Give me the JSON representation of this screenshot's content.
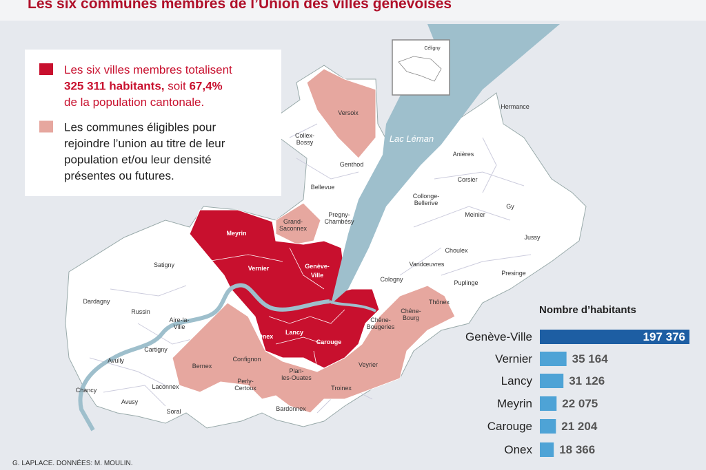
{
  "header": {
    "title": "Les six communes membres de l’Union des villes genevoises"
  },
  "legend": {
    "items": [
      {
        "color": "#c8102e",
        "lines": [
          [
            "Les six villes membres totalisent"
          ],
          [
            "325 311 habitants,",
            " soit ",
            "67,4%"
          ],
          [
            "de la population cantonale."
          ]
        ]
      },
      {
        "color": "#e6a79f",
        "lines": [
          [
            "Les communes éligibles pour"
          ],
          [
            "rejoindre l’union au titre de leur"
          ],
          [
            "population et/ou leur densité"
          ],
          [
            "présentes ou futures."
          ]
        ]
      }
    ]
  },
  "map": {
    "lake": "Lac Léman",
    "inset": "Céligny",
    "labels": [
      [
        "Versoix"
      ],
      [
        "Collex-",
        "Bossy"
      ],
      [
        "Genthod"
      ],
      [
        "Bellevue"
      ],
      [
        "Pregny-",
        "Chambésy"
      ],
      [
        "Grand-",
        "Saconnex"
      ],
      [
        "Meyrin"
      ],
      [
        "Vernier"
      ],
      [
        "Genève-",
        "Ville"
      ],
      [
        "Satigny"
      ],
      [
        "Dardagny"
      ],
      [
        "Russin"
      ],
      [
        "Aire-la-",
        "Ville"
      ],
      [
        "Cartigny"
      ],
      [
        "Avully"
      ],
      [
        "Chancy"
      ],
      [
        "Avusy"
      ],
      [
        "Laconnex"
      ],
      [
        "Soral"
      ],
      [
        "Bernex"
      ],
      [
        "Confignon"
      ],
      [
        "Perly-",
        "Certoux"
      ],
      [
        "Onex"
      ],
      [
        "Lancy"
      ],
      [
        "Carouge"
      ],
      [
        "Plan-",
        "les-Ouates"
      ],
      [
        "Bardonnex"
      ],
      [
        "Troinex"
      ],
      [
        "Veyrier"
      ],
      [
        "Chêne-",
        "Bougeries"
      ],
      [
        "Chêne-",
        "Bourg"
      ],
      [
        "Thônex"
      ],
      [
        "Cologny"
      ],
      [
        "Vandœuvres"
      ],
      [
        "Choulex"
      ],
      [
        "Puplinge"
      ],
      [
        "Presinge"
      ],
      [
        "Jussy"
      ],
      [
        "Meinier"
      ],
      [
        "Gy"
      ],
      [
        "Collonge-",
        "Bellerive"
      ],
      [
        "Corsier"
      ],
      [
        "Anières"
      ],
      [
        "Hermance"
      ]
    ]
  },
  "credit": "G. LAPLACE. DONNÉES: M. MOULIN.",
  "chart_data": {
    "type": "bar",
    "orientation": "horizontal",
    "title": "Nombre d’habitants",
    "categories": [
      "Genève-Ville",
      "Vernier",
      "Lancy",
      "Meyrin",
      "Carouge",
      "Onex"
    ],
    "values": [
      197376,
      35164,
      31126,
      22075,
      21204,
      18366
    ],
    "value_labels": [
      "197 376",
      "35 164",
      "31 126",
      "22 075",
      "21 204",
      "18 366"
    ],
    "colors": [
      "#1d5ea3",
      "#4ea3d6",
      "#4ea3d6",
      "#4ea3d6",
      "#4ea3d6",
      "#4ea3d6"
    ]
  }
}
